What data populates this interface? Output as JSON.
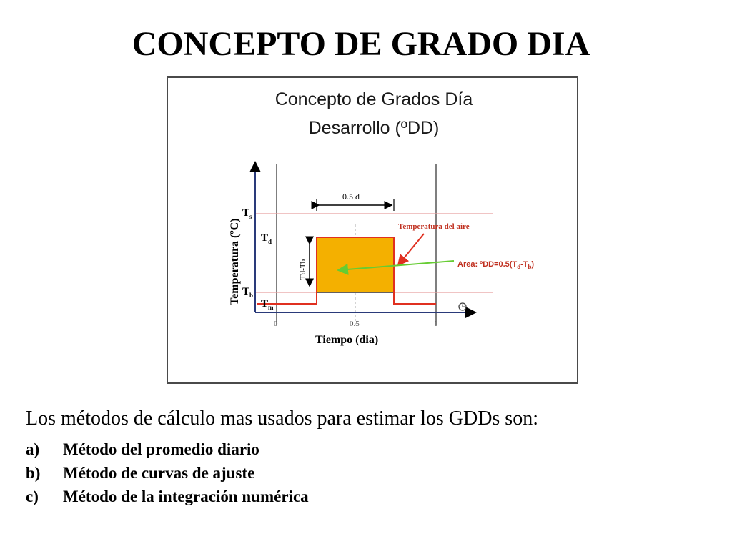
{
  "slide": {
    "title": "CONCEPTO DE GRADO DIA"
  },
  "figure": {
    "title_line1": "Concepto de Grados Día",
    "title_line2": "Desarrollo (ºDD)",
    "y_axis_label": "Temperatura (ºC)",
    "x_axis_label": "Tiempo (dia)",
    "x_ticks": [
      "0",
      "0.5",
      "1"
    ],
    "y_labels": {
      "ts": {
        "main": "T",
        "sub": "s"
      },
      "td": {
        "main": "T",
        "sub": "d"
      },
      "tb": {
        "main": "T",
        "sub": "b"
      },
      "tm": {
        "main": "T",
        "sub": "m"
      }
    },
    "span_label": "0.5 d",
    "difference_label": "Td-Tb",
    "air_temp_label": "Temperatura del aire",
    "area_label": {
      "prefix": "Area: ºDD=0.5(T",
      "sub1": "d",
      "mid": "-T",
      "sub2": "b",
      "suffix": ")"
    },
    "colors": {
      "area_fill": "#f4b000",
      "air_temp_line": "#e03020",
      "guide_lines": "#e8a0a0",
      "area_arrow": "#66cc33"
    }
  },
  "body": {
    "intro": "Los métodos de cálculo mas usados para estimar los GDDs son:",
    "methods": [
      {
        "marker": "a)",
        "text": "Método del promedio diario"
      },
      {
        "marker": "b)",
        "text": "Método de curvas de ajuste"
      },
      {
        "marker": "c)",
        "text": "Método de la integración numérica"
      }
    ]
  }
}
